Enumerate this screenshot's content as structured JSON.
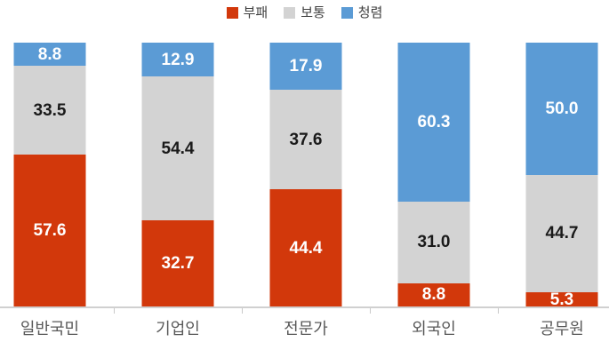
{
  "chart_data": {
    "type": "bar",
    "stacked": true,
    "unit": "percent",
    "title": "",
    "xlabel": "",
    "ylabel": "",
    "ylim": [
      0,
      100
    ],
    "legend_position": "top",
    "value_labels": true,
    "value_labels_decimals": 1,
    "categories": [
      "일반국민",
      "기업인",
      "전문가",
      "외국인",
      "공무원"
    ],
    "series": [
      {
        "name": "부패",
        "color": "#D2380B",
        "label_color": "#FFFFFF",
        "values": [
          57.6,
          32.7,
          44.4,
          8.8,
          5.3
        ]
      },
      {
        "name": "보통",
        "color": "#D3D3D3",
        "label_color": "#1A1A1A",
        "values": [
          33.5,
          54.4,
          37.6,
          31.0,
          44.7
        ]
      },
      {
        "name": "청렴",
        "color": "#5B9BD5",
        "label_color": "#FFFFFF",
        "values": [
          8.8,
          12.9,
          17.9,
          60.3,
          50.0
        ]
      }
    ]
  },
  "colors": {
    "background": "#FFFFFF",
    "axis_line": "#D0D0D0",
    "tick": "#C9C9C9",
    "category_label": "#595959",
    "legend_text": "#404040"
  }
}
